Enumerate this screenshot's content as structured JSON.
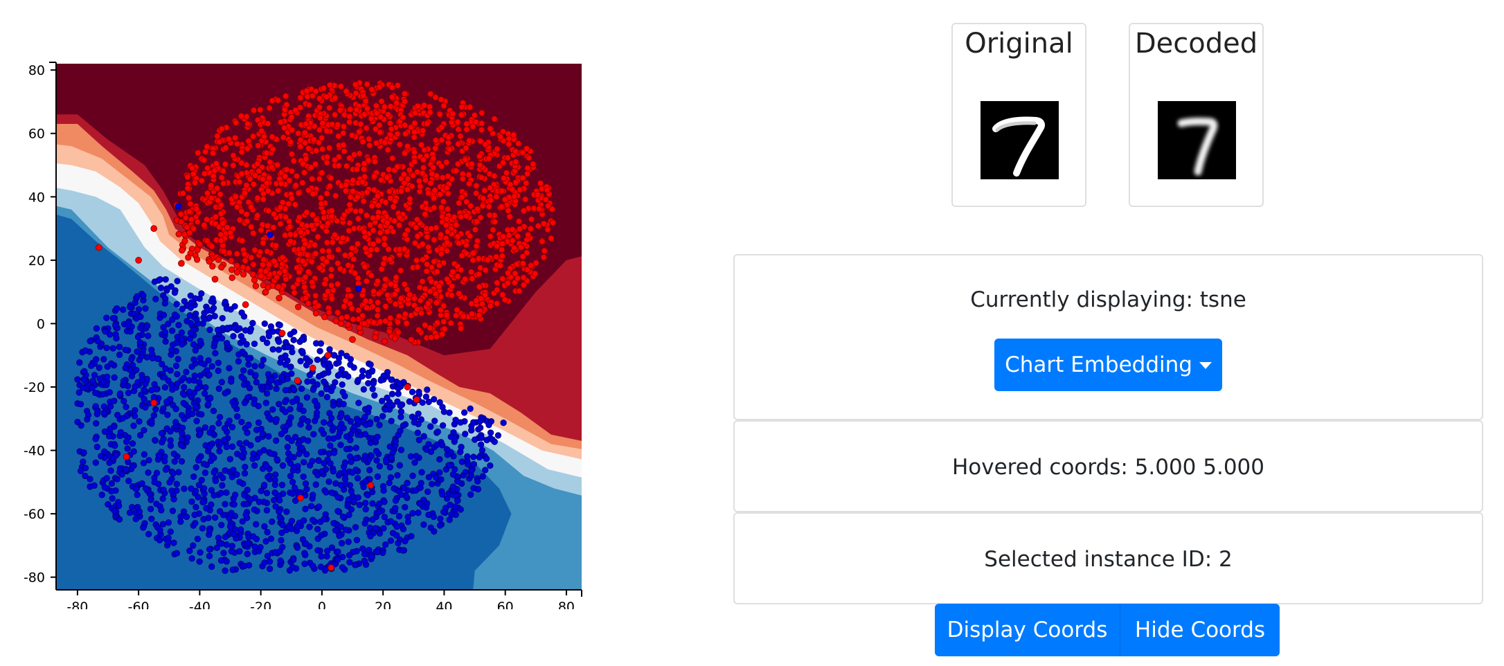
{
  "chart_data": {
    "type": "scatter",
    "title": "",
    "xlabel": "",
    "ylabel": "",
    "xlim": [
      -87,
      85
    ],
    "ylim": [
      -84,
      82
    ],
    "x_ticks": [
      -80,
      -60,
      -40,
      -20,
      0,
      20,
      40,
      60,
      80
    ],
    "y_ticks": [
      80,
      60,
      40,
      20,
      0,
      -20,
      -40,
      -60,
      -80
    ],
    "background": "decision-boundary contour (dark red upper-right region, blue lower-left region, white/light band along the boundary)",
    "grid": false,
    "legend": "none",
    "colors": {
      "red_points": "#ff0000",
      "blue_points": "#0000d8",
      "region_dark_red": "#67001f",
      "region_red": "#b2182b",
      "region_salmon": "#ef8a62",
      "region_peach": "#fbbfa2",
      "region_white": "#f7f7f7",
      "region_light_blue": "#a7cde3",
      "region_mid_blue": "#4393c3",
      "region_blue": "#1464ab"
    },
    "series": [
      {
        "color": "#ff0000",
        "approx_count": 1800,
        "cluster": {
          "x_range": [
            -50,
            75
          ],
          "y_range": [
            -25,
            75
          ],
          "center": [
            15,
            35
          ]
        },
        "points": [
          [
            -73,
            24
          ],
          [
            -60,
            20
          ],
          [
            -46,
            19
          ],
          [
            -55,
            30
          ],
          [
            -25,
            6
          ],
          [
            -13,
            -3
          ],
          [
            -3,
            -14
          ],
          [
            -8,
            -18
          ],
          [
            -20,
            15
          ],
          [
            -35,
            14
          ],
          [
            2,
            -10
          ],
          [
            10,
            -5
          ],
          [
            28,
            -20
          ],
          [
            31,
            -24
          ],
          [
            -55,
            -25
          ],
          [
            -64,
            -42
          ],
          [
            -7,
            -55
          ],
          [
            16,
            -51
          ],
          [
            3,
            -77
          ]
        ]
      },
      {
        "color": "#0000d8",
        "approx_count": 1700,
        "cluster": {
          "x_range": [
            -80,
            60
          ],
          "y_range": [
            -78,
            25
          ],
          "center": [
            -15,
            -30
          ]
        },
        "points": [
          [
            -47,
            37
          ],
          [
            -17,
            28
          ],
          [
            12,
            11
          ],
          [
            -34,
            -2
          ],
          [
            -24,
            -32
          ],
          [
            4,
            -10
          ]
        ]
      }
    ]
  },
  "cards": {
    "original": {
      "title": "Original",
      "icon": "digit-7-image"
    },
    "decoded": {
      "title": "Decoded",
      "icon": "digit-7-image"
    }
  },
  "panels": {
    "display_text": "Currently displaying: tsne",
    "dropdown_label": "Chart Embedding",
    "hover_text": "Hovered coords: 5.000 5.000",
    "selected_text": "Selected instance ID: 2"
  },
  "buttons": {
    "display_coords": "Display Coords",
    "hide_coords": "Hide Coords"
  },
  "theme": {
    "primary": "#007bff",
    "border": "#dfdfdf"
  }
}
